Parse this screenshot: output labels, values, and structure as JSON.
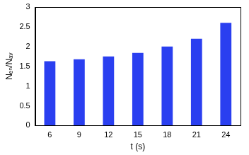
{
  "chart_data": {
    "type": "bar",
    "x_label": "t (s)",
    "y_label": "Nₑₙ/Nₐᵥ",
    "categories": [
      "6",
      "9",
      "12",
      "15",
      "18",
      "21",
      "24"
    ],
    "values": [
      1.63,
      1.68,
      1.75,
      1.84,
      2.0,
      2.2,
      2.6
    ],
    "color": "#2a3ff0",
    "ylim": [
      0,
      3
    ],
    "yticks": [
      0,
      0.5,
      1,
      1.5,
      2,
      2.5,
      3
    ],
    "grid": false
  }
}
